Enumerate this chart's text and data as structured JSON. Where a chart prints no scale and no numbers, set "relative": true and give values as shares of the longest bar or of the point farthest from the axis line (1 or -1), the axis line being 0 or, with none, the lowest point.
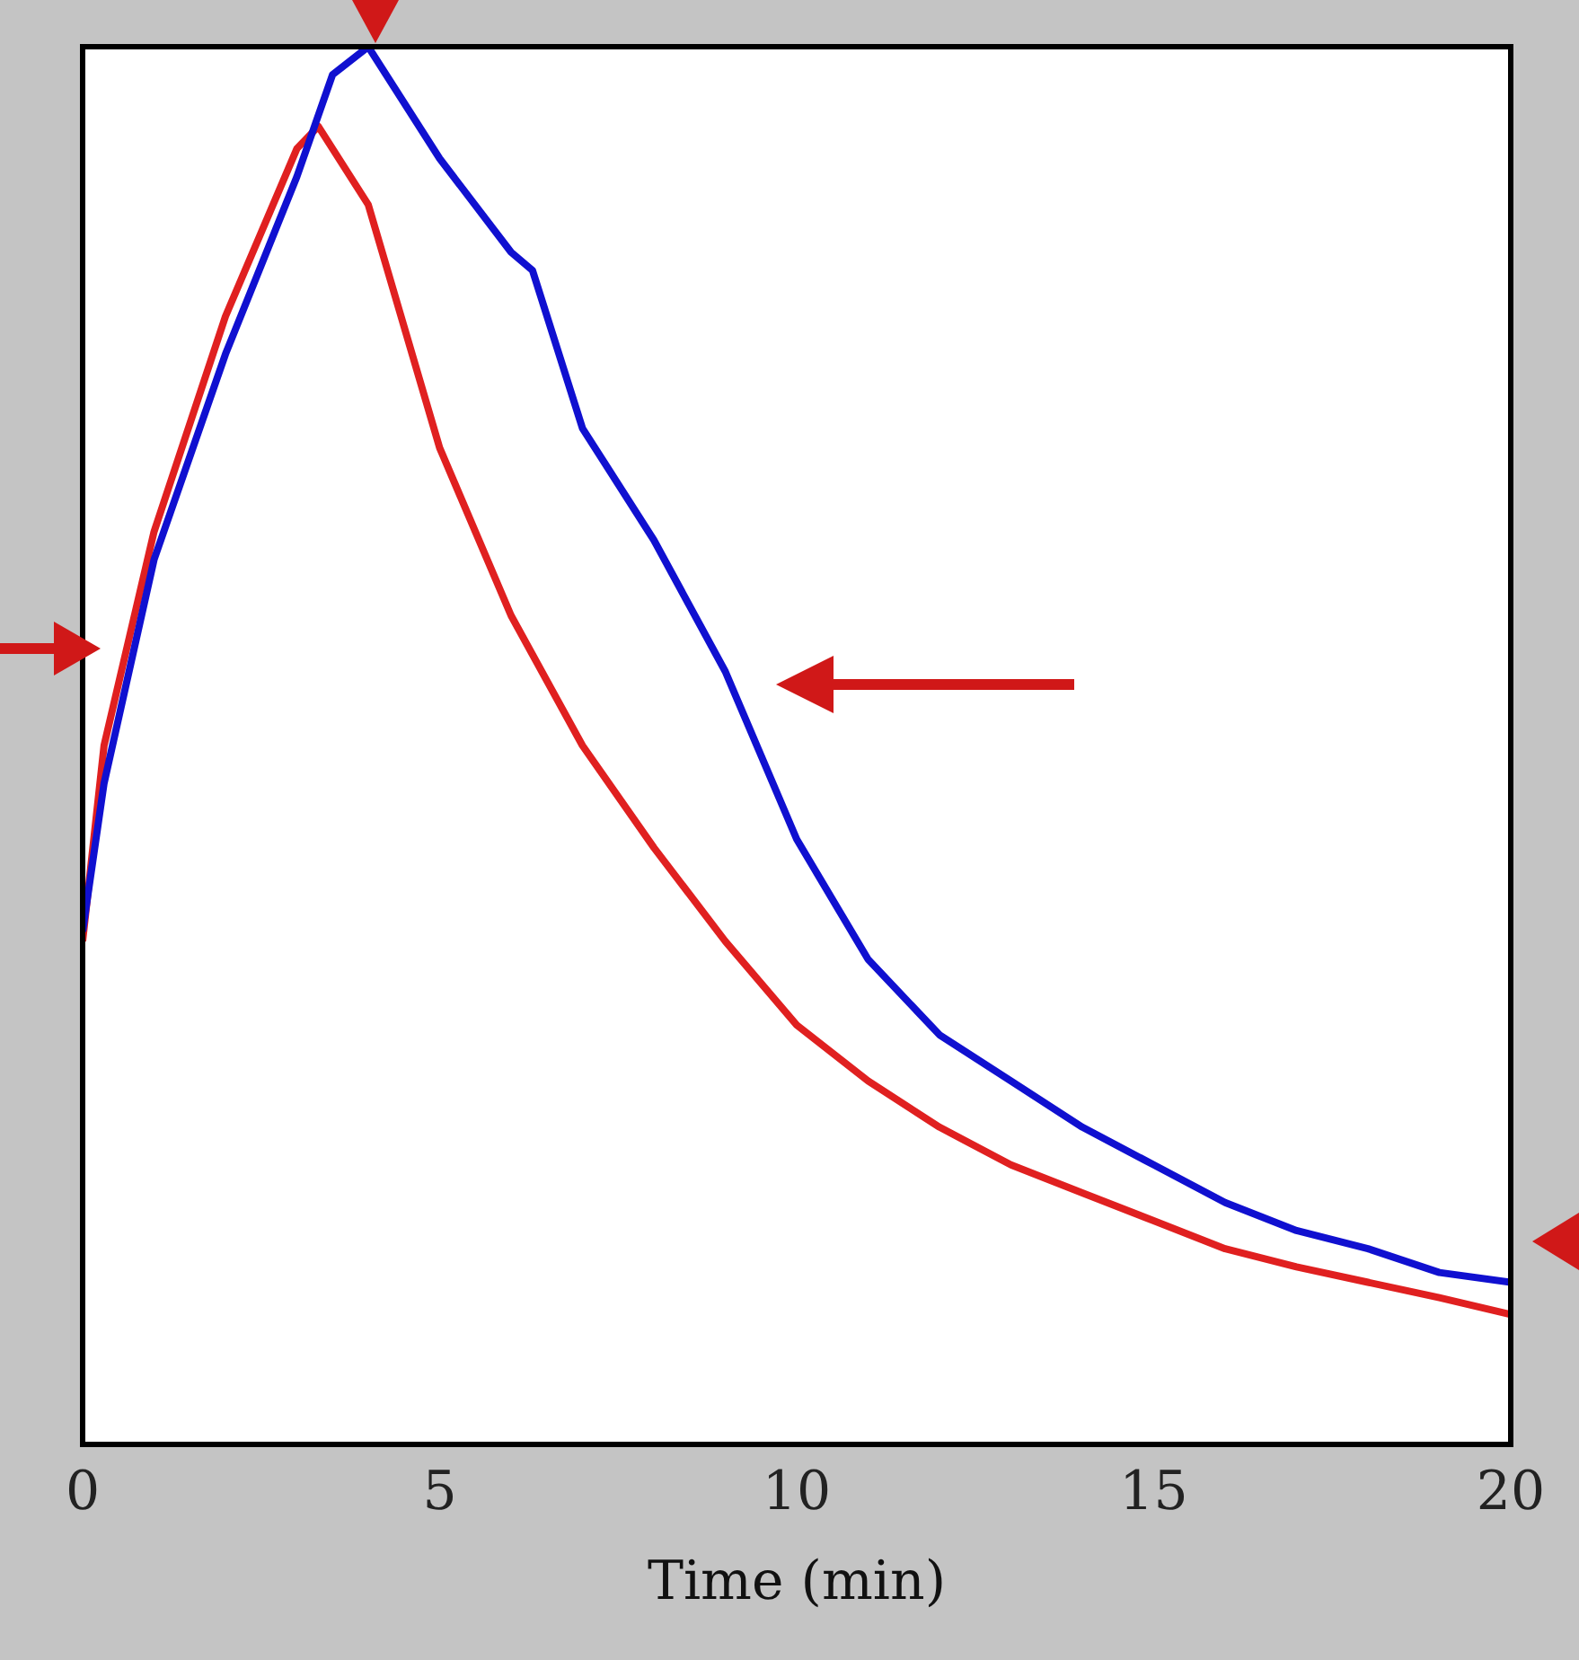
{
  "chart_data": {
    "type": "line",
    "relative": true,
    "xlabel": "Time (min)",
    "xlim": [
      0,
      20
    ],
    "xticks": [
      0,
      5,
      10,
      15,
      20
    ],
    "grid": false,
    "legend": false,
    "marker": "none",
    "line_style": "solid",
    "series": [
      {
        "color": "#1010d0",
        "x": [
          0,
          0.3,
          1,
          2,
          3,
          3.5,
          4,
          5,
          6,
          6.3,
          7,
          8,
          9,
          10,
          11,
          12,
          13,
          14,
          15,
          16,
          17,
          18,
          19,
          20
        ],
        "values": [
          0.367,
          0.473,
          0.633,
          0.78,
          0.907,
          0.98,
          1,
          0.92,
          0.853,
          0.84,
          0.727,
          0.647,
          0.553,
          0.433,
          0.347,
          0.293,
          0.26,
          0.227,
          0.2,
          0.173,
          0.153,
          0.14,
          0.123,
          0.116
        ]
      },
      {
        "color": "#e02020",
        "x": [
          0,
          0.3,
          1,
          2,
          3,
          3.3,
          4,
          5,
          6,
          7,
          8,
          9,
          10,
          11,
          12,
          13,
          14,
          15,
          16,
          17,
          18,
          19,
          20
        ],
        "values": [
          0.36,
          0.5,
          0.653,
          0.807,
          0.927,
          0.943,
          0.887,
          0.713,
          0.593,
          0.5,
          0.427,
          0.36,
          0.3,
          0.26,
          0.227,
          0.2,
          0.18,
          0.16,
          0.14,
          0.127,
          0.116,
          0.105,
          0.093
        ]
      }
    ]
  }
}
